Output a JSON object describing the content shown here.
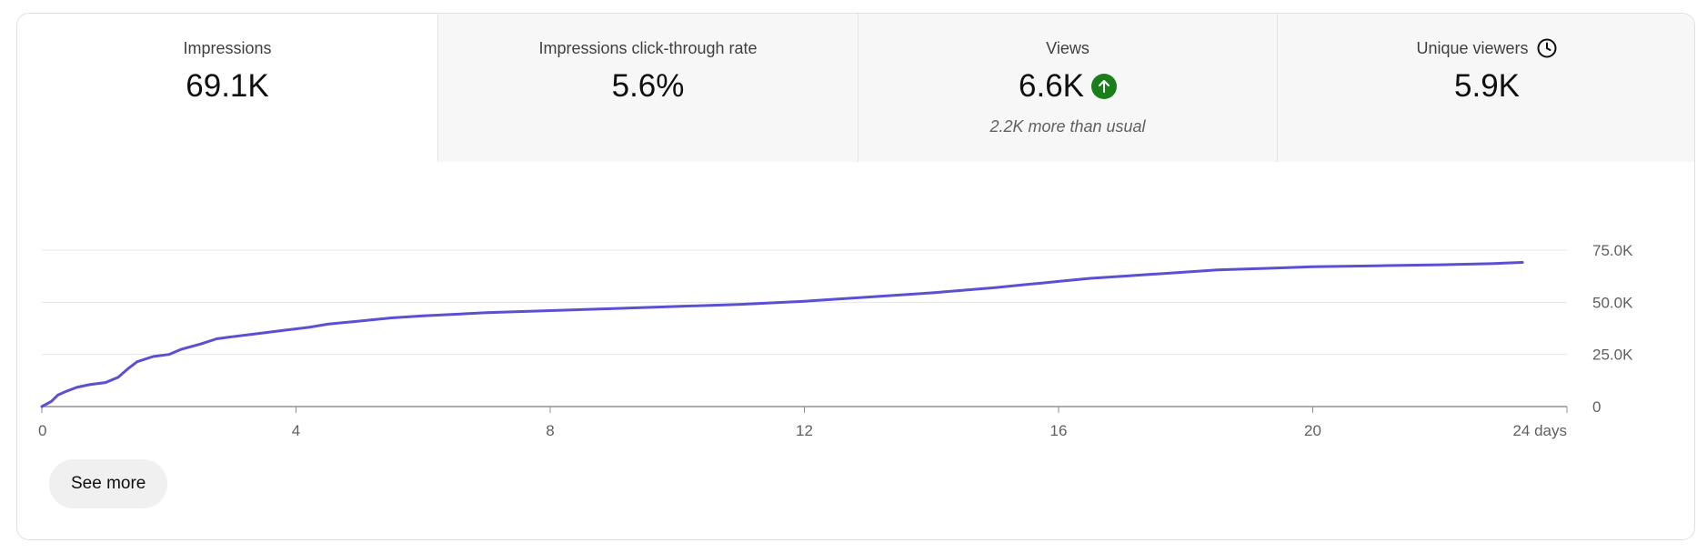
{
  "tabs": [
    {
      "title": "Impressions",
      "value": "69.1K"
    },
    {
      "title": "Impressions click-through rate",
      "value": "5.6%"
    },
    {
      "title": "Views",
      "value": "6.6K",
      "note": "2.2K more than usual"
    },
    {
      "title": "Unique viewers",
      "value": "5.9K"
    }
  ],
  "icons": {
    "views_trend": "arrow-up-icon",
    "unique_viewers": "clock-icon"
  },
  "colors": {
    "line": "#5b4fd4",
    "positive": "#1a7f1a"
  },
  "see_more_label": "See more",
  "chart_data": {
    "type": "line",
    "x_ticks": [
      "0",
      "4",
      "8",
      "12",
      "16",
      "20",
      "24 days"
    ],
    "x_tick_values": [
      0,
      4,
      8,
      12,
      16,
      20,
      24
    ],
    "y_ticks": [
      "0",
      "25.0K",
      "50.0K",
      "75.0K"
    ],
    "y_tick_values": [
      0,
      25000,
      50000,
      75000
    ],
    "xlim": [
      0,
      24
    ],
    "ylim": [
      0,
      75000
    ],
    "grid": true,
    "series": [
      {
        "x": [
          0,
          0.15,
          0.25,
          0.4,
          0.55,
          0.75,
          1.0,
          1.2,
          1.35,
          1.5,
          1.75,
          2.0,
          2.2,
          2.5,
          2.75,
          3.0,
          3.4,
          3.8,
          4.2,
          4.5,
          5.0,
          5.5,
          6.0,
          7.0,
          8.0,
          9.0,
          10.0,
          11.0,
          12.0,
          13.0,
          14.0,
          15.0,
          15.5,
          16.0,
          16.5,
          17.0,
          17.5,
          18.0,
          18.5,
          19.0,
          19.5,
          20.0,
          21.0,
          22.0,
          22.8,
          23.3
        ],
        "y": [
          0,
          2500,
          5500,
          7500,
          9200,
          10500,
          11500,
          14000,
          18000,
          21500,
          24000,
          25000,
          27500,
          30000,
          32500,
          33500,
          35000,
          36500,
          38000,
          39500,
          41000,
          42500,
          43500,
          45000,
          46000,
          47000,
          48000,
          49000,
          50500,
          52500,
          54500,
          57000,
          58500,
          60000,
          61500,
          62500,
          63500,
          64500,
          65500,
          66000,
          66500,
          67000,
          67500,
          68000,
          68500,
          69100
        ]
      }
    ]
  }
}
